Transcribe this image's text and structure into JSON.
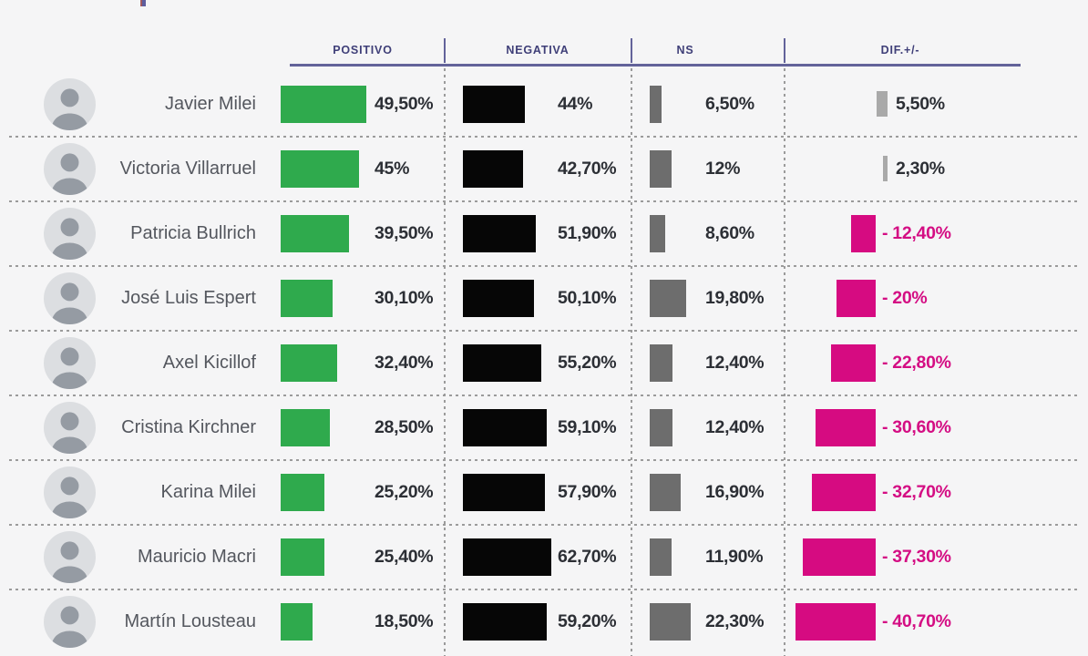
{
  "page": {
    "background": "#f5f5f6"
  },
  "colors": {
    "positivo_bar": "#2faa4d",
    "negativa_bar": "#060606",
    "ns_bar": "#6d6d6d",
    "dif_positive_bar": "#a9a9a9",
    "dif_negative_bar": "#d60b81",
    "dif_negative_text": "#d40d83",
    "value_text": "#2c2f35",
    "name_text": "#54575e",
    "header_text": "#3f3f78",
    "header_line": "#63639a",
    "separator": "#9b9b9b"
  },
  "header": {
    "columns": [
      {
        "label": "POSITIVO"
      },
      {
        "label": "NEGATIVA"
      },
      {
        "label": "NS"
      },
      {
        "label": "DIF.+/-"
      }
    ]
  },
  "chart_data": {
    "type": "bar",
    "orientation": "horizontal",
    "unit": "percent",
    "grid": false,
    "categories": [
      "Javier Milei",
      "Victoria Villarruel",
      "Patricia Bullrich",
      "José Luis Espert",
      "Axel Kicillof",
      "Cristina Kirchner",
      "Karina Milei",
      "Mauricio Macri",
      "Martín Lousteau"
    ],
    "series": [
      {
        "name": "POSITIVO",
        "color": "#2faa4d",
        "values": [
          49.5,
          45,
          39.5,
          30.1,
          32.4,
          28.5,
          25.2,
          25.4,
          18.5
        ]
      },
      {
        "name": "NEGATIVA",
        "color": "#060606",
        "values": [
          44,
          42.7,
          51.9,
          50.1,
          55.2,
          59.1,
          57.9,
          62.7,
          59.2
        ]
      },
      {
        "name": "NS",
        "color": "#6d6d6d",
        "values": [
          6.5,
          12,
          8.6,
          19.8,
          12.4,
          12.4,
          16.9,
          11.9,
          22.3
        ]
      },
      {
        "name": "DIF.+/-",
        "positive_color": "#a9a9a9",
        "negative_color": "#d60b81",
        "values": [
          5.5,
          2.3,
          -12.4,
          -20,
          -22.8,
          -30.6,
          -32.7,
          -37.3,
          -40.7
        ]
      }
    ]
  },
  "rows": [
    {
      "name": "Javier Milei",
      "positivo_label": "49,50%",
      "negativa_label": "44%",
      "ns_label": "6,50%",
      "dif_label": "5,50%"
    },
    {
      "name": "Victoria Villarruel",
      "positivo_label": "45%",
      "negativa_label": "42,70%",
      "ns_label": "12%",
      "dif_label": "2,30%"
    },
    {
      "name": "Patricia Bullrich",
      "positivo_label": "39,50%",
      "negativa_label": "51,90%",
      "ns_label": "8,60%",
      "dif_label": "- 12,40%"
    },
    {
      "name": "José Luis Espert",
      "positivo_label": "30,10%",
      "negativa_label": "50,10%",
      "ns_label": "19,80%",
      "dif_label": "- 20%"
    },
    {
      "name": "Axel Kicillof",
      "positivo_label": "32,40%",
      "negativa_label": "55,20%",
      "ns_label": "12,40%",
      "dif_label": "- 22,80%"
    },
    {
      "name": "Cristina Kirchner",
      "positivo_label": "28,50%",
      "negativa_label": "59,10%",
      "ns_label": "12,40%",
      "dif_label": "- 30,60%"
    },
    {
      "name": "Karina Milei",
      "positivo_label": "25,20%",
      "negativa_label": "57,90%",
      "ns_label": "16,90%",
      "dif_label": "- 32,70%"
    },
    {
      "name": "Mauricio Macri",
      "positivo_label": "25,40%",
      "negativa_label": "62,70%",
      "ns_label": "11,90%",
      "dif_label": "- 37,30%"
    },
    {
      "name": "Martín Lousteau",
      "positivo_label": "18,50%",
      "negativa_label": "59,20%",
      "ns_label": "22,30%",
      "dif_label": "- 40,70%"
    }
  ]
}
